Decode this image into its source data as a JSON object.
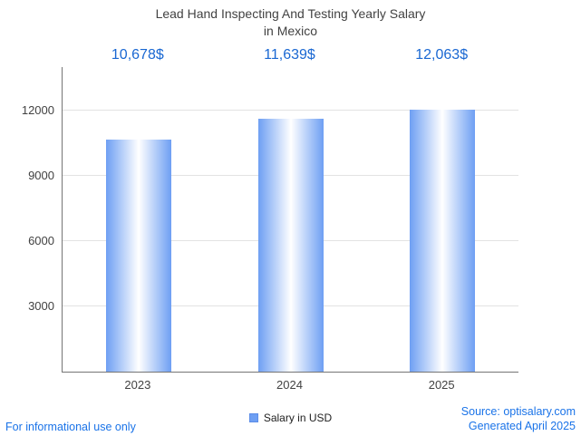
{
  "title": {
    "line1": "Lead Hand Inspecting And Testing Yearly Salary",
    "line2": "in Mexico"
  },
  "chart_data": {
    "type": "bar",
    "title": "Lead Hand Inspecting And Testing Yearly Salary in Mexico",
    "categories": [
      "2023",
      "2024",
      "2025"
    ],
    "values": [
      10678,
      11639,
      12063
    ],
    "value_labels": [
      "10,678$",
      "11,639$",
      "12,063$"
    ],
    "ylim": [
      0,
      14000
    ],
    "yticks": [
      3000,
      6000,
      9000,
      12000
    ],
    "grid": true,
    "legend": {
      "label": "Salary in USD",
      "position": "bottom"
    },
    "bar_edge_color": "#6e9ff3",
    "bar_center_color": "#ffffff",
    "value_label_color": "#1967d2",
    "axis_color": "#757575",
    "grid_color": "#e3e3e3"
  },
  "footer": {
    "disclaimer": "For informational use only",
    "source": "Source: optisalary.com",
    "generated": "Generated April 2025"
  }
}
